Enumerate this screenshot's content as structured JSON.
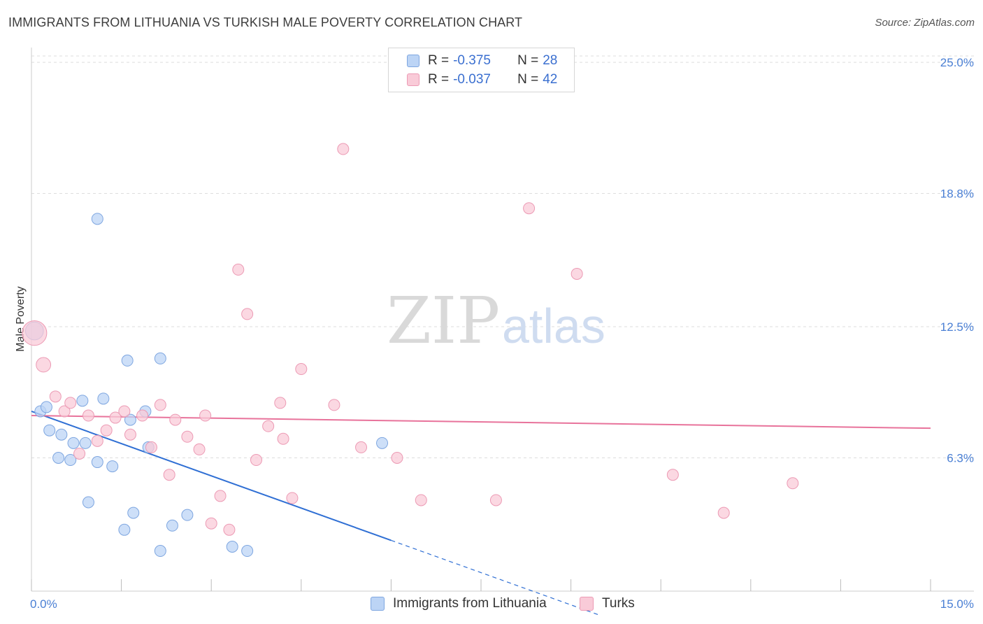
{
  "header": {
    "title": "IMMIGRANTS FROM LITHUANIA VS TURKISH MALE POVERTY CORRELATION CHART",
    "source": "Source: ZipAtlas.com"
  },
  "legend": {
    "rows": [
      {
        "r_label": "R =",
        "r_value": "-0.375",
        "n_label": "N =",
        "n_value": "28"
      },
      {
        "r_label": "R =",
        "r_value": "-0.037",
        "n_label": "N =",
        "n_value": "42"
      }
    ]
  },
  "watermark": {
    "zip": "ZIP",
    "atlas": "atlas"
  },
  "colors": {
    "blue_fill": "#bcd4f5",
    "blue_stroke": "#7ea6e0",
    "blue_line": "#2f6fd4",
    "pink_fill": "#f9cbd8",
    "pink_stroke": "#ec9ab4",
    "pink_line": "#e8739b",
    "tick_text": "#4a7fd4",
    "grid": "#dddddd"
  },
  "chart_data": {
    "type": "scatter",
    "title": "IMMIGRANTS FROM LITHUANIA VS TURKISH MALE POVERTY CORRELATION CHART",
    "xlabel": "",
    "ylabel": "Male Poverty",
    "xlim": [
      0,
      15
    ],
    "ylim": [
      0,
      25
    ],
    "x_tick_labels": [
      "0.0%",
      "15.0%"
    ],
    "y_ticks": [
      6.3,
      12.5,
      18.8,
      25.0
    ],
    "y_tick_labels": [
      "6.3%",
      "12.5%",
      "18.8%",
      "25.0%"
    ],
    "legend_position": "top-center",
    "series": [
      {
        "name": "Immigrants from Lithuania",
        "r": -0.375,
        "n": 28,
        "trendline": {
          "x0": 0.0,
          "y0": 8.5,
          "x1": 6.0,
          "y1": 2.4,
          "dashed_to_x": 9.5
        },
        "points": [
          [
            0.05,
            12.3,
            1.6
          ],
          [
            0.15,
            8.5,
            1
          ],
          [
            0.25,
            8.7,
            1
          ],
          [
            0.3,
            7.6,
            1
          ],
          [
            0.5,
            7.4,
            1
          ],
          [
            0.45,
            6.3,
            1
          ],
          [
            0.65,
            6.2,
            1
          ],
          [
            0.7,
            7.0,
            1
          ],
          [
            0.9,
            7.0,
            1
          ],
          [
            0.85,
            9.0,
            1
          ],
          [
            1.2,
            9.1,
            1
          ],
          [
            1.1,
            6.1,
            1
          ],
          [
            1.35,
            5.9,
            1
          ],
          [
            1.6,
            10.9,
            1
          ],
          [
            1.65,
            8.1,
            1
          ],
          [
            1.9,
            8.5,
            1
          ],
          [
            1.95,
            6.8,
            1
          ],
          [
            2.15,
            11.0,
            1
          ],
          [
            1.1,
            17.6,
            1
          ],
          [
            0.95,
            4.2,
            1
          ],
          [
            1.55,
            2.9,
            1
          ],
          [
            1.7,
            3.7,
            1
          ],
          [
            2.15,
            1.9,
            1
          ],
          [
            2.35,
            3.1,
            1
          ],
          [
            2.6,
            3.6,
            1
          ],
          [
            3.35,
            2.1,
            1
          ],
          [
            3.6,
            1.9,
            1
          ],
          [
            5.85,
            7.0,
            1
          ]
        ]
      },
      {
        "name": "Turks",
        "r": -0.037,
        "n": 42,
        "trendline": {
          "x0": 0.0,
          "y0": 8.3,
          "x1": 15.0,
          "y1": 7.7
        },
        "points": [
          [
            0.05,
            12.2,
            2.2
          ],
          [
            0.2,
            10.7,
            1.3
          ],
          [
            0.4,
            9.2,
            1
          ],
          [
            0.55,
            8.5,
            1
          ],
          [
            0.65,
            8.9,
            1
          ],
          [
            0.8,
            6.5,
            1
          ],
          [
            0.95,
            8.3,
            1
          ],
          [
            1.1,
            7.1,
            1
          ],
          [
            1.25,
            7.6,
            1
          ],
          [
            1.4,
            8.2,
            1
          ],
          [
            1.55,
            8.5,
            1
          ],
          [
            1.65,
            7.4,
            1
          ],
          [
            1.85,
            8.3,
            1
          ],
          [
            2.0,
            6.8,
            1
          ],
          [
            2.15,
            8.8,
            1
          ],
          [
            2.3,
            5.5,
            1
          ],
          [
            2.4,
            8.1,
            1
          ],
          [
            2.6,
            7.3,
            1
          ],
          [
            2.8,
            6.7,
            1
          ],
          [
            2.9,
            8.3,
            1
          ],
          [
            3.0,
            3.2,
            1
          ],
          [
            3.15,
            4.5,
            1
          ],
          [
            3.3,
            2.9,
            1
          ],
          [
            3.45,
            15.2,
            1
          ],
          [
            3.6,
            13.1,
            1
          ],
          [
            3.75,
            6.2,
            1
          ],
          [
            3.95,
            7.8,
            1
          ],
          [
            4.15,
            8.9,
            1
          ],
          [
            4.2,
            7.2,
            1
          ],
          [
            4.35,
            4.4,
            1
          ],
          [
            4.5,
            10.5,
            1
          ],
          [
            5.05,
            8.8,
            1
          ],
          [
            5.2,
            20.9,
            1
          ],
          [
            5.5,
            6.8,
            1
          ],
          [
            6.1,
            6.3,
            1
          ],
          [
            6.5,
            4.3,
            1
          ],
          [
            7.75,
            4.3,
            1
          ],
          [
            8.3,
            18.1,
            1
          ],
          [
            9.1,
            15.0,
            1
          ],
          [
            10.7,
            5.5,
            1
          ],
          [
            11.55,
            3.7,
            1
          ],
          [
            12.7,
            5.1,
            1
          ]
        ]
      }
    ]
  }
}
